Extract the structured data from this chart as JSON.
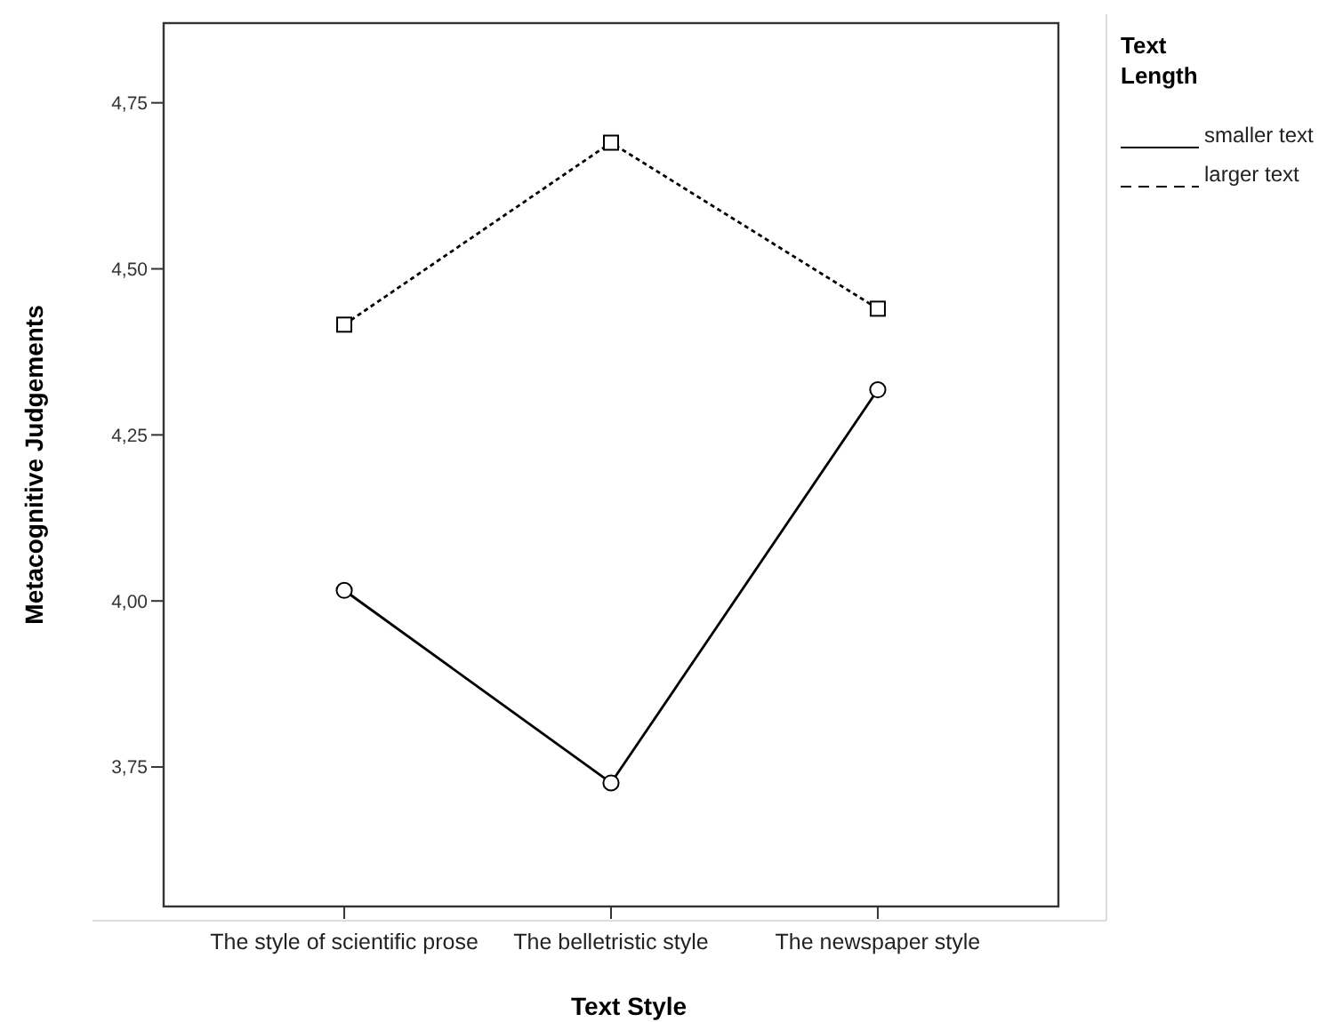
{
  "chart_data": {
    "type": "line",
    "xlabel": "Text Style",
    "ylabel": "Metacognitive Judgements",
    "legend_title": "Text Length",
    "legend": "top right",
    "categories": [
      "The style of scientific  prose",
      "The belletristic style",
      "The newspaper style"
    ],
    "ylim": [
      3.54,
      4.87
    ],
    "yticks": [
      {
        "value": 3.75,
        "label": "3,75"
      },
      {
        "value": 4,
        "label": "4,00"
      },
      {
        "value": 4.25,
        "label": "4,25"
      },
      {
        "value": 4.5,
        "label": "4,50"
      },
      {
        "value": 4.75,
        "label": "4,75"
      }
    ],
    "grid": false,
    "series": [
      {
        "name": "smaller text",
        "color": "#000000",
        "values": [
          4.016,
          3.726,
          4.318
        ],
        "line_style": "solid",
        "marker": "circle"
      },
      {
        "name": "larger text",
        "color": "#000000",
        "values": [
          4.416,
          4.69,
          4.44
        ],
        "line_style": "dotted",
        "marker": "square"
      }
    ]
  }
}
